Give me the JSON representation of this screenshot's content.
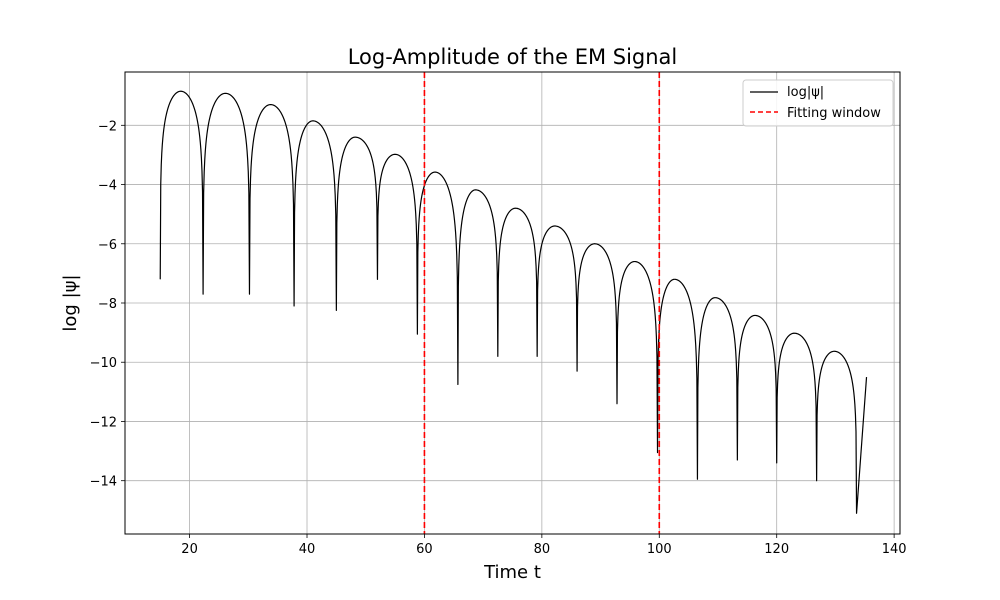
{
  "chart_data": {
    "type": "line",
    "title": "Log-Amplitude of the EM Signal",
    "xlabel": "Time t",
    "ylabel": "log |ψ|",
    "xlim": [
      9,
      141
    ],
    "ylim": [
      -15.8,
      -0.2
    ],
    "xticks": [
      20,
      40,
      60,
      80,
      100,
      120,
      140
    ],
    "yticks": [
      -14,
      -12,
      -10,
      -8,
      -6,
      -4,
      -2
    ],
    "grid": true,
    "legend_position": "top-right",
    "series": [
      {
        "name": "log|ψ|",
        "color": "#000000",
        "style": "solid",
        "x_start": 15.0,
        "x_end": 135.3,
        "start_value": -7.2,
        "end_value": -10.5,
        "lobes": [
          {
            "peak_t": 18.5,
            "peak": -0.85
          },
          {
            "peak_t": 26.1,
            "peak": -0.92
          },
          {
            "peak_t": 33.8,
            "peak": -1.3
          },
          {
            "peak_t": 41.0,
            "peak": -1.85
          },
          {
            "peak_t": 48.2,
            "peak": -2.4
          },
          {
            "peak_t": 55.0,
            "peak": -2.98
          },
          {
            "peak_t": 61.8,
            "peak": -3.58
          },
          {
            "peak_t": 68.7,
            "peak": -4.18
          },
          {
            "peak_t": 75.5,
            "peak": -4.8
          },
          {
            "peak_t": 82.2,
            "peak": -5.4
          },
          {
            "peak_t": 89.0,
            "peak": -6.0
          },
          {
            "peak_t": 95.8,
            "peak": -6.6
          },
          {
            "peak_t": 102.6,
            "peak": -7.2
          },
          {
            "peak_t": 109.5,
            "peak": -7.82
          },
          {
            "peak_t": 116.3,
            "peak": -8.42
          },
          {
            "peak_t": 123.0,
            "peak": -9.02
          },
          {
            "peak_t": 129.8,
            "peak": -9.63
          }
        ],
        "dips": [
          {
            "t": 22.3,
            "value": -7.7
          },
          {
            "t": 30.2,
            "value": -7.7
          },
          {
            "t": 37.8,
            "value": -8.1
          },
          {
            "t": 45.0,
            "value": -8.25
          },
          {
            "t": 52.0,
            "value": -7.2
          },
          {
            "t": 58.8,
            "value": -9.05
          },
          {
            "t": 65.7,
            "value": -10.75
          },
          {
            "t": 72.5,
            "value": -9.8
          },
          {
            "t": 79.2,
            "value": -9.8
          },
          {
            "t": 86.0,
            "value": -10.3
          },
          {
            "t": 92.8,
            "value": -11.4
          },
          {
            "t": 99.7,
            "value": -13.05
          },
          {
            "t": 106.5,
            "value": -13.95
          },
          {
            "t": 113.3,
            "value": -13.3
          },
          {
            "t": 120.0,
            "value": -13.4
          },
          {
            "t": 126.8,
            "value": -14.0
          },
          {
            "t": 133.6,
            "value": -15.1
          }
        ]
      },
      {
        "name": "Fitting window",
        "color": "#ff0000",
        "style": "dashed",
        "vlines": [
          60,
          100
        ]
      }
    ]
  }
}
